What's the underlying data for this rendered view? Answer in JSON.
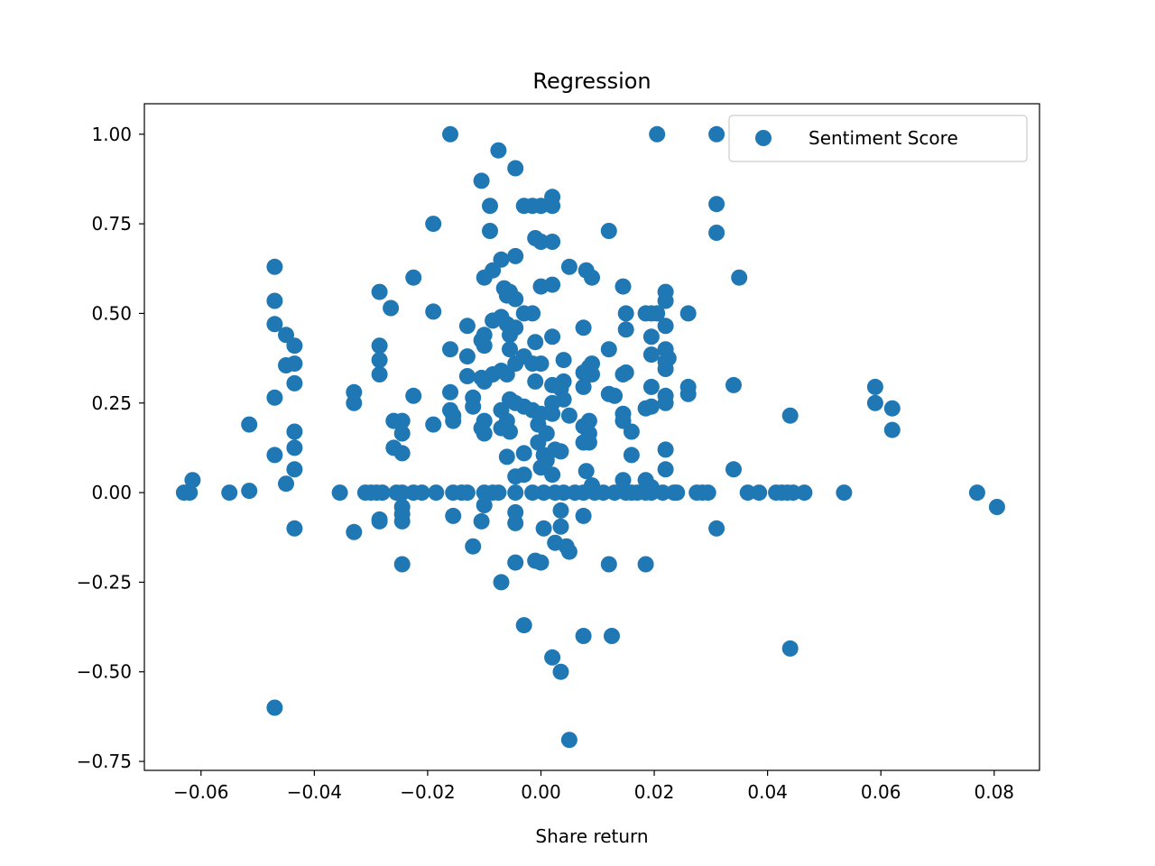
{
  "chart_data": {
    "type": "scatter",
    "title": "Regression",
    "xlabel": "Share return",
    "ylabel": "",
    "xlim": [
      -0.07,
      0.088
    ],
    "ylim": [
      -0.775,
      1.085
    ],
    "x_ticks": [
      -0.06,
      -0.04,
      -0.02,
      0.0,
      0.02,
      0.04,
      0.06,
      0.08
    ],
    "x_tick_labels": [
      "−0.06",
      "−0.04",
      "−0.02",
      "0.00",
      "0.02",
      "0.04",
      "0.06",
      "0.08"
    ],
    "y_ticks": [
      1.0,
      0.75,
      0.5,
      0.25,
      0.0,
      -0.25,
      -0.5,
      -0.75
    ],
    "y_tick_labels": [
      "1.00",
      "0.75",
      "0.50",
      "0.25",
      "0.00",
      "−0.25",
      "−0.50",
      "−0.75"
    ],
    "grid": false,
    "legend": {
      "position": "top-right",
      "entries": [
        "Sentiment Score"
      ]
    },
    "series": [
      {
        "name": "Sentiment Score",
        "color": "#1f77b4",
        "points": [
          [
            -0.063,
            0.0
          ],
          [
            -0.062,
            0.0
          ],
          [
            -0.0615,
            0.035
          ],
          [
            -0.055,
            0.0
          ],
          [
            -0.0515,
            0.005
          ],
          [
            -0.0515,
            0.19
          ],
          [
            -0.047,
            0.63
          ],
          [
            -0.047,
            0.535
          ],
          [
            -0.047,
            0.47
          ],
          [
            -0.047,
            0.265
          ],
          [
            -0.047,
            0.105
          ],
          [
            -0.047,
            -0.6
          ],
          [
            -0.045,
            0.44
          ],
          [
            -0.045,
            0.355
          ],
          [
            -0.045,
            0.025
          ],
          [
            -0.0435,
            0.41
          ],
          [
            -0.0435,
            0.36
          ],
          [
            -0.0435,
            0.305
          ],
          [
            -0.0435,
            0.17
          ],
          [
            -0.0435,
            0.125
          ],
          [
            -0.0435,
            0.065
          ],
          [
            -0.0435,
            -0.1
          ],
          [
            -0.0355,
            0.0
          ],
          [
            -0.033,
            0.28
          ],
          [
            -0.033,
            0.25
          ],
          [
            -0.033,
            -0.11
          ],
          [
            -0.031,
            0.0
          ],
          [
            -0.03,
            0.0
          ],
          [
            -0.029,
            0.0
          ],
          [
            -0.028,
            0.0
          ],
          [
            -0.0285,
            0.56
          ],
          [
            -0.0285,
            0.41
          ],
          [
            -0.0285,
            0.37
          ],
          [
            -0.0285,
            0.33
          ],
          [
            -0.0285,
            -0.075
          ],
          [
            -0.0285,
            -0.08
          ],
          [
            -0.0265,
            0.515
          ],
          [
            -0.026,
            0.2
          ],
          [
            -0.026,
            0.125
          ],
          [
            -0.0255,
            0.0
          ],
          [
            -0.0245,
            0.2
          ],
          [
            -0.0245,
            0.165
          ],
          [
            -0.0245,
            0.11
          ],
          [
            -0.0245,
            0.0
          ],
          [
            -0.0245,
            -0.04
          ],
          [
            -0.0245,
            -0.06
          ],
          [
            -0.0245,
            -0.08
          ],
          [
            -0.0245,
            -0.2
          ],
          [
            -0.0225,
            0.6
          ],
          [
            -0.0225,
            0.27
          ],
          [
            -0.0225,
            0.0
          ],
          [
            -0.021,
            0.0
          ],
          [
            -0.019,
            0.75
          ],
          [
            -0.019,
            0.505
          ],
          [
            -0.019,
            0.19
          ],
          [
            -0.0185,
            0.0
          ],
          [
            -0.016,
            1.0
          ],
          [
            -0.016,
            0.4
          ],
          [
            -0.016,
            0.28
          ],
          [
            -0.016,
            0.23
          ],
          [
            -0.0155,
            0.215
          ],
          [
            -0.0155,
            0.2
          ],
          [
            -0.0155,
            0.0
          ],
          [
            -0.0155,
            -0.065
          ],
          [
            -0.014,
            0.0
          ],
          [
            -0.013,
            0.465
          ],
          [
            -0.013,
            0.38
          ],
          [
            -0.013,
            0.325
          ],
          [
            -0.013,
            0.0
          ],
          [
            -0.012,
            0.265
          ],
          [
            -0.012,
            0.24
          ],
          [
            -0.012,
            -0.15
          ],
          [
            -0.0105,
            0.87
          ],
          [
            -0.0105,
            0.425
          ],
          [
            -0.0105,
            0.32
          ],
          [
            -0.0105,
            0.18
          ],
          [
            -0.0105,
            -0.08
          ],
          [
            -0.01,
            0.6
          ],
          [
            -0.01,
            0.44
          ],
          [
            -0.01,
            0.41
          ],
          [
            -0.01,
            0.31
          ],
          [
            -0.01,
            0.2
          ],
          [
            -0.01,
            0.165
          ],
          [
            -0.01,
            0.0
          ],
          [
            -0.01,
            -0.035
          ],
          [
            -0.009,
            0.8
          ],
          [
            -0.009,
            0.73
          ],
          [
            -0.0085,
            0.62
          ],
          [
            -0.0085,
            0.48
          ],
          [
            -0.0085,
            0.33
          ],
          [
            -0.0085,
            0.0
          ],
          [
            -0.0075,
            0.955
          ],
          [
            -0.0075,
            0.0
          ],
          [
            -0.007,
            0.65
          ],
          [
            -0.007,
            0.49
          ],
          [
            -0.007,
            0.34
          ],
          [
            -0.007,
            0.23
          ],
          [
            -0.007,
            0.18
          ],
          [
            -0.007,
            -0.25
          ],
          [
            -0.0065,
            0.57
          ],
          [
            -0.006,
            0.55
          ],
          [
            -0.006,
            0.47
          ],
          [
            -0.006,
            0.33
          ],
          [
            -0.006,
            0.2
          ],
          [
            -0.006,
            0.1
          ],
          [
            -0.0055,
            0.56
          ],
          [
            -0.0055,
            0.44
          ],
          [
            -0.0055,
            0.4
          ],
          [
            -0.0055,
            0.26
          ],
          [
            -0.0055,
            0.17
          ],
          [
            -0.0045,
            0.905
          ],
          [
            -0.0045,
            0.66
          ],
          [
            -0.0045,
            0.54
          ],
          [
            -0.0045,
            0.46
          ],
          [
            -0.0045,
            0.36
          ],
          [
            -0.0045,
            0.25
          ],
          [
            -0.0045,
            0.045
          ],
          [
            -0.0045,
            0.0
          ],
          [
            -0.0045,
            -0.055
          ],
          [
            -0.0045,
            -0.085
          ],
          [
            -0.0045,
            -0.195
          ],
          [
            -0.003,
            0.8
          ],
          [
            -0.003,
            0.5
          ],
          [
            -0.003,
            0.38
          ],
          [
            -0.003,
            0.24
          ],
          [
            -0.003,
            0.11
          ],
          [
            -0.003,
            0.05
          ],
          [
            -0.003,
            -0.37
          ],
          [
            -0.0015,
            0.8
          ],
          [
            -0.0015,
            0.5
          ],
          [
            -0.0015,
            0.36
          ],
          [
            -0.0015,
            0.23
          ],
          [
            -0.0015,
            0.0
          ],
          [
            -0.001,
            0.71
          ],
          [
            -0.001,
            0.42
          ],
          [
            -0.001,
            0.31
          ],
          [
            -0.001,
            -0.19
          ],
          [
            -0.0005,
            0.19
          ],
          [
            -0.0005,
            0.14
          ],
          [
            0.0,
            0.8
          ],
          [
            0.0,
            0.7
          ],
          [
            0.0,
            0.575
          ],
          [
            0.0,
            0.36
          ],
          [
            0.0,
            0.22
          ],
          [
            0.0,
            0.07
          ],
          [
            0.0,
            -0.195
          ],
          [
            0.0005,
            0.105
          ],
          [
            0.0005,
            0.0
          ],
          [
            0.0005,
            -0.1
          ],
          [
            0.001,
            0.165
          ],
          [
            0.001,
            0.09
          ],
          [
            0.002,
            0.825
          ],
          [
            0.002,
            0.8
          ],
          [
            0.002,
            0.7
          ],
          [
            0.002,
            0.58
          ],
          [
            0.002,
            0.435
          ],
          [
            0.002,
            0.3
          ],
          [
            0.002,
            0.25
          ],
          [
            0.002,
            0.22
          ],
          [
            0.002,
            0.05
          ],
          [
            0.002,
            -0.46
          ],
          [
            0.0025,
            0.12
          ],
          [
            0.0025,
            0.0
          ],
          [
            0.0025,
            -0.14
          ],
          [
            0.0035,
            0.29
          ],
          [
            0.0035,
            0.115
          ],
          [
            0.0035,
            -0.05
          ],
          [
            0.0035,
            -0.095
          ],
          [
            0.0035,
            -0.5
          ],
          [
            0.004,
            0.37
          ],
          [
            0.004,
            0.31
          ],
          [
            0.004,
            0.26
          ],
          [
            0.004,
            0.0
          ],
          [
            0.0045,
            -0.15
          ],
          [
            0.005,
            0.63
          ],
          [
            0.005,
            0.215
          ],
          [
            0.005,
            -0.165
          ],
          [
            0.005,
            -0.69
          ],
          [
            0.006,
            0.0
          ],
          [
            0.0075,
            0.46
          ],
          [
            0.0075,
            0.335
          ],
          [
            0.0075,
            0.295
          ],
          [
            0.0075,
            0.185
          ],
          [
            0.0075,
            0.14
          ],
          [
            0.0075,
            0.0
          ],
          [
            0.0075,
            -0.065
          ],
          [
            0.0075,
            -0.4
          ],
          [
            0.008,
            0.62
          ],
          [
            0.008,
            0.06
          ],
          [
            0.0085,
            0.35
          ],
          [
            0.0085,
            0.2
          ],
          [
            0.0085,
            0.165
          ],
          [
            0.0085,
            0.14
          ],
          [
            0.009,
            0.6
          ],
          [
            0.009,
            0.36
          ],
          [
            0.009,
            0.33
          ],
          [
            0.009,
            0.02
          ],
          [
            0.0095,
            0.0
          ],
          [
            0.011,
            0.0
          ],
          [
            0.012,
            0.73
          ],
          [
            0.012,
            0.4
          ],
          [
            0.012,
            0.275
          ],
          [
            0.012,
            -0.2
          ],
          [
            0.0125,
            -0.4
          ],
          [
            0.013,
            0.27
          ],
          [
            0.013,
            0.0
          ],
          [
            0.0145,
            0.575
          ],
          [
            0.0145,
            0.33
          ],
          [
            0.0145,
            0.22
          ],
          [
            0.0145,
            0.2
          ],
          [
            0.0145,
            0.035
          ],
          [
            0.015,
            0.5
          ],
          [
            0.015,
            0.455
          ],
          [
            0.015,
            0.335
          ],
          [
            0.015,
            0.0
          ],
          [
            0.016,
            0.17
          ],
          [
            0.016,
            0.105
          ],
          [
            0.016,
            0.0
          ],
          [
            0.017,
            0.0
          ],
          [
            0.0185,
            0.5
          ],
          [
            0.0185,
            0.235
          ],
          [
            0.0185,
            0.035
          ],
          [
            0.0185,
            0.0
          ],
          [
            0.0185,
            -0.2
          ],
          [
            0.0195,
            0.5
          ],
          [
            0.0195,
            0.435
          ],
          [
            0.0195,
            0.385
          ],
          [
            0.0195,
            0.295
          ],
          [
            0.0195,
            0.24
          ],
          [
            0.0195,
            0.015
          ],
          [
            0.0195,
            0.0
          ],
          [
            0.0205,
            1.0
          ],
          [
            0.0205,
            0.5
          ],
          [
            0.0215,
            0.0
          ],
          [
            0.022,
            0.56
          ],
          [
            0.022,
            0.535
          ],
          [
            0.022,
            0.465
          ],
          [
            0.022,
            0.4
          ],
          [
            0.022,
            0.365
          ],
          [
            0.022,
            0.345
          ],
          [
            0.022,
            0.27
          ],
          [
            0.022,
            0.25
          ],
          [
            0.022,
            0.12
          ],
          [
            0.022,
            0.065
          ],
          [
            0.0225,
            0.375
          ],
          [
            0.0235,
            0.0
          ],
          [
            0.024,
            0.0
          ],
          [
            0.026,
            0.5
          ],
          [
            0.026,
            0.295
          ],
          [
            0.026,
            0.275
          ],
          [
            0.0275,
            0.0
          ],
          [
            0.0285,
            0.0
          ],
          [
            0.0295,
            0.0
          ],
          [
            0.031,
            1.0
          ],
          [
            0.031,
            0.805
          ],
          [
            0.031,
            0.725
          ],
          [
            0.031,
            -0.1
          ],
          [
            0.034,
            0.3
          ],
          [
            0.034,
            0.065
          ],
          [
            0.035,
            0.6
          ],
          [
            0.0365,
            0.0
          ],
          [
            0.0385,
            0.0
          ],
          [
            0.0415,
            0.0
          ],
          [
            0.0425,
            0.0
          ],
          [
            0.0435,
            0.0
          ],
          [
            0.044,
            0.215
          ],
          [
            0.044,
            -0.435
          ],
          [
            0.0445,
            0.0
          ],
          [
            0.0465,
            0.0
          ],
          [
            0.0535,
            0.0
          ],
          [
            0.059,
            0.295
          ],
          [
            0.059,
            0.25
          ],
          [
            0.062,
            0.235
          ],
          [
            0.062,
            0.175
          ],
          [
            0.077,
            0.0
          ],
          [
            0.0805,
            -0.04
          ]
        ]
      }
    ]
  }
}
